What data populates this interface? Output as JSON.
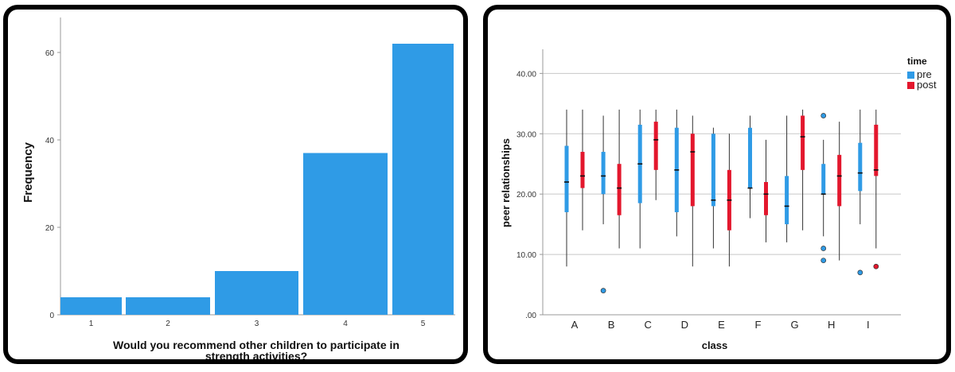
{
  "colors": {
    "bar": "#2f9be6",
    "pre": "#2f9be6",
    "post": "#e3172d",
    "panel_border": "#000000",
    "grid": "#c8c8c8"
  },
  "chart_data": [
    {
      "type": "bar",
      "title": "",
      "xlabel": "Would you recommend other children to participate in strength activities?",
      "xlabel_lines": [
        "Would you recommend other children to participate in",
        "strength activities?"
      ],
      "ylabel": "Frequency",
      "categories": [
        "1",
        "2",
        "3",
        "4",
        "5"
      ],
      "values": [
        4,
        4,
        10,
        37,
        62
      ],
      "ylim": [
        0,
        68
      ],
      "yticks": [
        0,
        20,
        40,
        60
      ],
      "ytick_labels": [
        "0",
        "20",
        "40",
        "60"
      ],
      "grid": false
    },
    {
      "type": "boxplot",
      "title": "",
      "xlabel": "class",
      "ylabel": "peer relationships",
      "categories": [
        "A",
        "B",
        "C",
        "D",
        "E",
        "F",
        "G",
        "H",
        "I"
      ],
      "ylim": [
        0,
        44
      ],
      "yticks": [
        0,
        10,
        20,
        30,
        40
      ],
      "ytick_labels": [
        ".00",
        "10.00",
        "20.00",
        "30.00",
        "40.00"
      ],
      "grid": true,
      "legend": {
        "title": "time",
        "position": "top-right"
      },
      "series": [
        {
          "name": "pre",
          "boxes": [
            {
              "min": 8,
              "q1": 17,
              "median": 22,
              "q3": 28,
              "max": 34,
              "outliers": []
            },
            {
              "min": 15,
              "q1": 20,
              "median": 23,
              "q3": 27,
              "max": 33,
              "outliers": [
                4
              ]
            },
            {
              "min": 11,
              "q1": 18.5,
              "median": 25,
              "q3": 31.5,
              "max": 34,
              "outliers": []
            },
            {
              "min": 13,
              "q1": 17,
              "median": 24,
              "q3": 31,
              "max": 34,
              "outliers": []
            },
            {
              "min": 11,
              "q1": 18,
              "median": 19,
              "q3": 30,
              "max": 31,
              "outliers": []
            },
            {
              "min": 16,
              "q1": 21,
              "median": 21,
              "q3": 31,
              "max": 33,
              "outliers": []
            },
            {
              "min": 12,
              "q1": 15,
              "median": 18,
              "q3": 23,
              "max": 33,
              "outliers": []
            },
            {
              "min": 13,
              "q1": 20,
              "median": 20,
              "q3": 25,
              "max": 29,
              "outliers": [
                33,
                11,
                9
              ]
            },
            {
              "min": 15,
              "q1": 20.5,
              "median": 23.5,
              "q3": 28.5,
              "max": 34,
              "outliers": [
                7
              ]
            }
          ]
        },
        {
          "name": "post",
          "boxes": [
            {
              "min": 14,
              "q1": 21,
              "median": 23,
              "q3": 27,
              "max": 34,
              "outliers": []
            },
            {
              "min": 11,
              "q1": 16.5,
              "median": 21,
              "q3": 25,
              "max": 34,
              "outliers": []
            },
            {
              "min": 19,
              "q1": 24,
              "median": 29,
              "q3": 32,
              "max": 34,
              "outliers": []
            },
            {
              "min": 8,
              "q1": 18,
              "median": 27,
              "q3": 30,
              "max": 33,
              "outliers": []
            },
            {
              "min": 8,
              "q1": 14,
              "median": 19,
              "q3": 24,
              "max": 30,
              "outliers": []
            },
            {
              "min": 12,
              "q1": 16.5,
              "median": 20,
              "q3": 22,
              "max": 29,
              "outliers": []
            },
            {
              "min": 14,
              "q1": 24,
              "median": 29.5,
              "q3": 33,
              "max": 34,
              "outliers": []
            },
            {
              "min": 9,
              "q1": 18,
              "median": 23,
              "q3": 26.5,
              "max": 32,
              "outliers": []
            },
            {
              "min": 11,
              "q1": 23,
              "median": 24,
              "q3": 31.5,
              "max": 34,
              "outliers": [
                8
              ]
            }
          ]
        }
      ]
    }
  ]
}
